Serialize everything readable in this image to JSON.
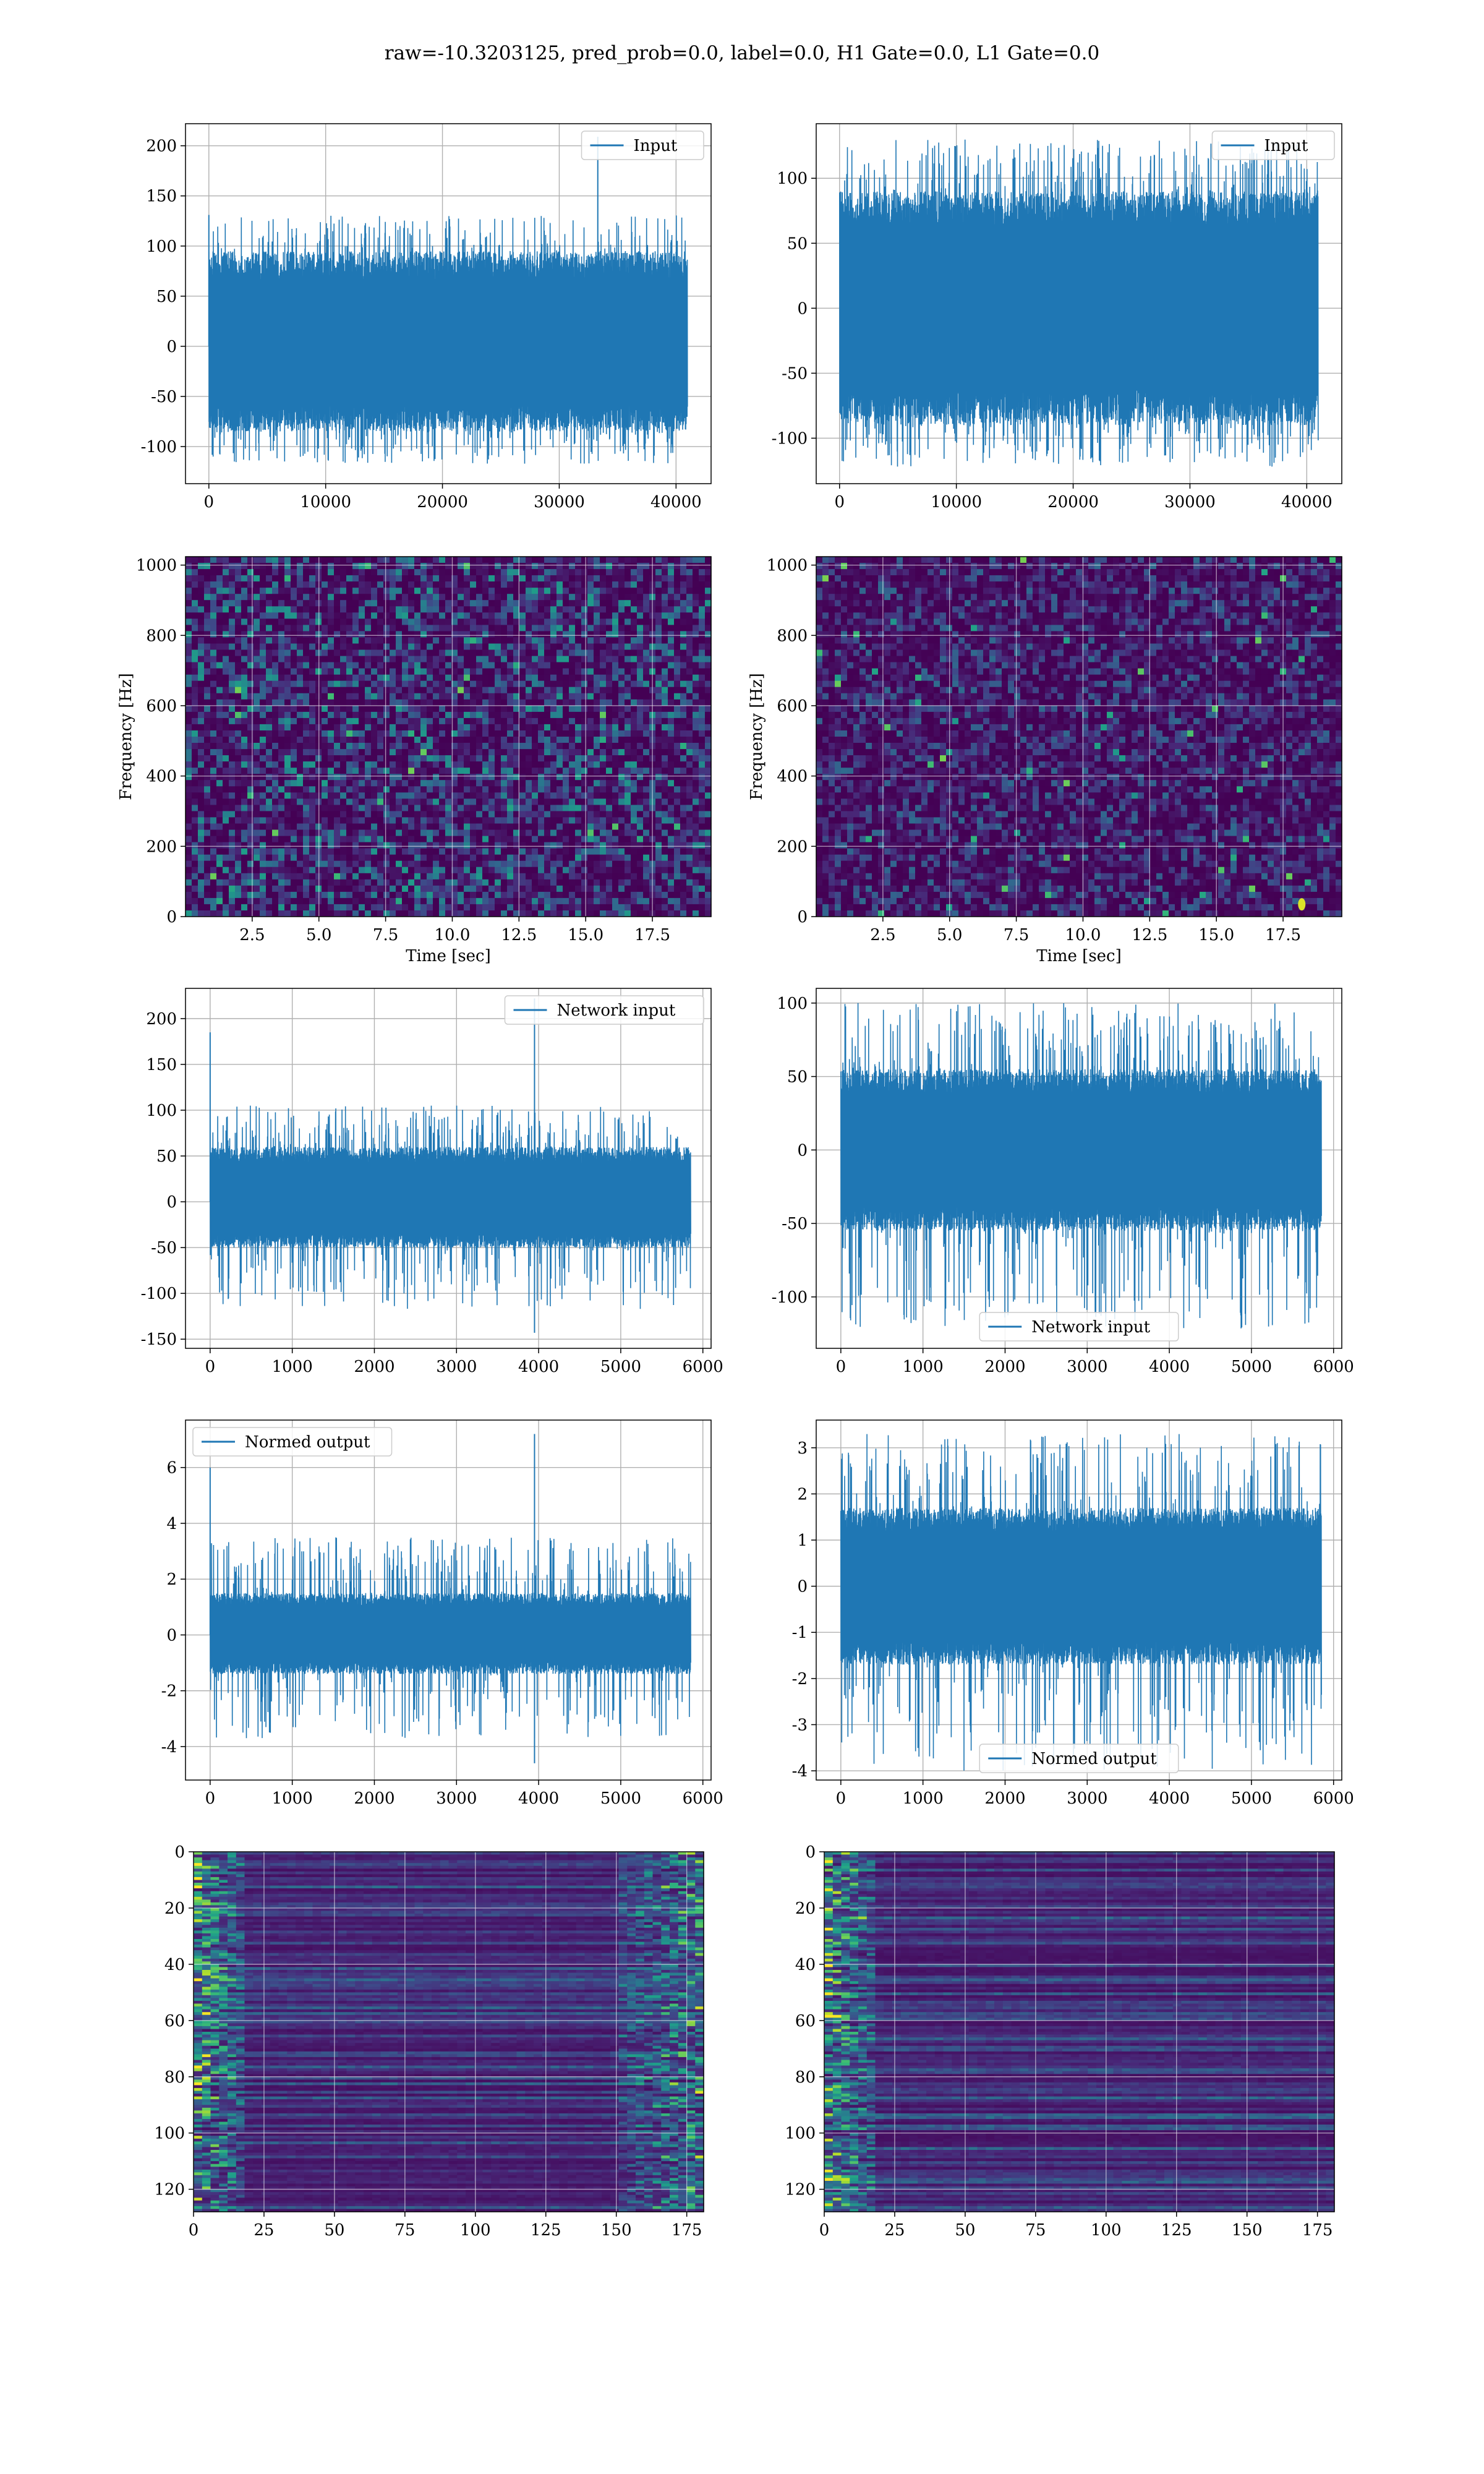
{
  "figure": {
    "suptitle": "raw=-10.3203125, pred_prob=0.0, label=0.0, H1 Gate=0.0, L1 Gate=0.0"
  },
  "colors": {
    "line": "#1f77b4",
    "grid": "#b0b0b0",
    "viridis": [
      "#440154",
      "#482878",
      "#3e4a89",
      "#31688e",
      "#26828e",
      "#1f9e89",
      "#35b779",
      "#6ece58",
      "#b5de2b",
      "#fde725"
    ]
  },
  "chart_data": [
    {
      "id": "ts-h1-input",
      "type": "line",
      "legend": [
        "Input"
      ],
      "legend_loc": "upper right",
      "xlim": [
        -2000,
        43000
      ],
      "ylim": [
        -137,
        222
      ],
      "xticks": [
        0,
        10000,
        20000,
        30000,
        40000
      ],
      "yticks": [
        -100,
        -50,
        0,
        50,
        100,
        150,
        200
      ],
      "grid": true,
      "series": [
        {
          "name": "Input",
          "x_range": [
            0,
            40960
          ],
          "envelope_low": -85,
          "envelope_high": 95,
          "spike_max": 131,
          "spike_min": -117,
          "spikes": [
            {
              "x": 0,
              "y": 131
            },
            {
              "x": 33300,
              "y": 209
            }
          ]
        }
      ]
    },
    {
      "id": "ts-l1-input",
      "type": "line",
      "legend": [
        "Input"
      ],
      "legend_loc": "upper right",
      "xlim": [
        -2000,
        43000
      ],
      "ylim": [
        -135,
        142
      ],
      "xticks": [
        0,
        10000,
        20000,
        30000,
        40000
      ],
      "yticks": [
        -100,
        -50,
        0,
        50,
        100
      ],
      "grid": true,
      "series": [
        {
          "name": "Input",
          "x_range": [
            0,
            40960
          ],
          "envelope_low": -90,
          "envelope_high": 90,
          "spike_max": 130,
          "spike_min": -122,
          "spikes": []
        }
      ]
    },
    {
      "id": "spec-h1",
      "type": "heatmap",
      "xlabel": "Time [sec]",
      "ylabel": "Frequency [Hz]",
      "xlim": [
        0,
        19.7
      ],
      "ylim": [
        0,
        1024
      ],
      "xticks": [
        2.5,
        5.0,
        7.5,
        10.0,
        12.5,
        15.0,
        17.5
      ],
      "yticks": [
        0,
        200,
        400,
        600,
        800,
        1000
      ],
      "grid": true,
      "colormap": "viridis",
      "intensity": 0.55
    },
    {
      "id": "spec-l1",
      "type": "heatmap",
      "xlabel": "Time [sec]",
      "ylabel": "Frequency [Hz]",
      "xlim": [
        0,
        19.7
      ],
      "ylim": [
        0,
        1024
      ],
      "xticks": [
        2.5,
        5.0,
        7.5,
        10.0,
        12.5,
        15.0,
        17.5
      ],
      "yticks": [
        0,
        200,
        400,
        600,
        800,
        1000
      ],
      "grid": true,
      "colormap": "viridis",
      "intensity": 0.35,
      "hotspots": [
        {
          "x": 18.2,
          "y": 35
        }
      ]
    },
    {
      "id": "ts-h1-network-input",
      "type": "line",
      "legend": [
        "Network input"
      ],
      "legend_loc": "upper right",
      "xlim": [
        -300,
        6100
      ],
      "ylim": [
        -160,
        233
      ],
      "xticks": [
        0,
        1000,
        2000,
        3000,
        4000,
        5000,
        6000
      ],
      "yticks": [
        -150,
        -100,
        -50,
        0,
        50,
        100,
        150,
        200
      ],
      "grid": true,
      "series": [
        {
          "name": "Network input",
          "x_range": [
            0,
            5850
          ],
          "envelope_low": -50,
          "envelope_high": 60,
          "spike_max": 105,
          "spike_min": -117,
          "spikes": [
            {
              "x": 0,
              "y": 185
            },
            {
              "x": 3950,
              "y": 222
            },
            {
              "x": 3950,
              "y": -143
            }
          ]
        }
      ]
    },
    {
      "id": "ts-l1-network-input",
      "type": "line",
      "legend": [
        "Network input"
      ],
      "legend_loc": "lower center",
      "xlim": [
        -300,
        6100
      ],
      "ylim": [
        -135,
        110
      ],
      "xticks": [
        0,
        1000,
        2000,
        3000,
        4000,
        5000,
        6000
      ],
      "yticks": [
        -100,
        -50,
        0,
        50,
        100
      ],
      "grid": true,
      "series": [
        {
          "name": "Network input",
          "x_range": [
            0,
            5850
          ],
          "envelope_low": -55,
          "envelope_high": 55,
          "spike_max": 100,
          "spike_min": -122,
          "spikes": []
        }
      ]
    },
    {
      "id": "ts-h1-normed-output",
      "type": "line",
      "legend": [
        "Normed output"
      ],
      "legend_loc": "upper left",
      "xlim": [
        -300,
        6100
      ],
      "ylim": [
        -5.2,
        7.7
      ],
      "xticks": [
        0,
        1000,
        2000,
        3000,
        4000,
        5000,
        6000
      ],
      "yticks": [
        -4,
        -2,
        0,
        2,
        4,
        6
      ],
      "grid": true,
      "series": [
        {
          "name": "Normed output",
          "x_range": [
            0,
            5850
          ],
          "envelope_low": -1.4,
          "envelope_high": 1.5,
          "spike_max": 3.5,
          "spike_min": -3.7,
          "spikes": [
            {
              "x": 0,
              "y": 6.0
            },
            {
              "x": 3950,
              "y": 7.2
            },
            {
              "x": 3950,
              "y": -4.6
            }
          ]
        }
      ]
    },
    {
      "id": "ts-l1-normed-output",
      "type": "line",
      "legend": [
        "Normed output"
      ],
      "legend_loc": "lower center",
      "xlim": [
        -300,
        6100
      ],
      "ylim": [
        -4.2,
        3.6
      ],
      "xticks": [
        0,
        1000,
        2000,
        3000,
        4000,
        5000,
        6000
      ],
      "yticks": [
        -4,
        -3,
        -2,
        -1,
        0,
        1,
        2,
        3
      ],
      "grid": true,
      "series": [
        {
          "name": "Normed output",
          "x_range": [
            0,
            5850
          ],
          "envelope_low": -1.7,
          "envelope_high": 1.7,
          "spike_max": 3.3,
          "spike_min": -4.0,
          "spikes": []
        }
      ]
    },
    {
      "id": "feat-h1",
      "type": "heatmap",
      "xlim": [
        0,
        181
      ],
      "ylim": [
        128,
        0
      ],
      "xticks": [
        0,
        25,
        50,
        75,
        100,
        125,
        150,
        175
      ],
      "yticks": [
        0,
        20,
        40,
        60,
        80,
        100,
        120
      ],
      "grid": true,
      "colormap": "viridis",
      "bright_edges": [
        "left",
        "right"
      ]
    },
    {
      "id": "feat-l1",
      "type": "heatmap",
      "xlim": [
        0,
        181
      ],
      "ylim": [
        128,
        0
      ],
      "xticks": [
        0,
        25,
        50,
        75,
        100,
        125,
        150,
        175
      ],
      "yticks": [
        0,
        20,
        40,
        60,
        80,
        100,
        120
      ],
      "grid": true,
      "colormap": "viridis",
      "bright_edges": [
        "left"
      ]
    }
  ]
}
